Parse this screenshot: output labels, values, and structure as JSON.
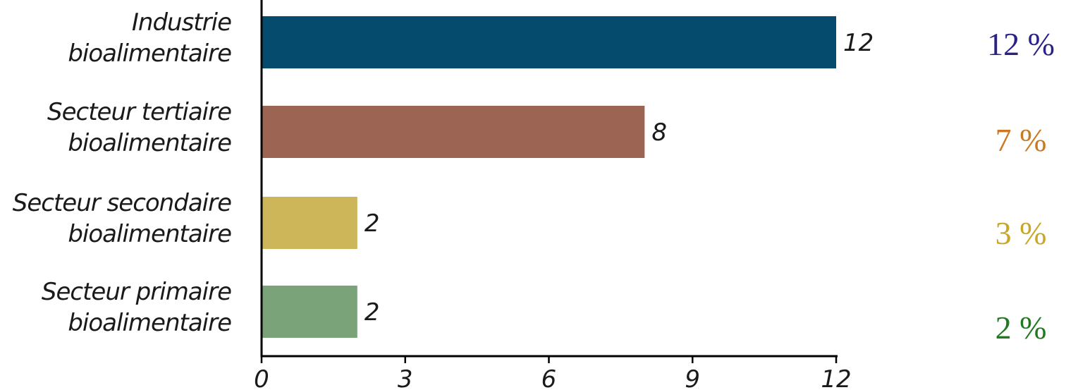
{
  "chart_data": {
    "type": "bar",
    "orientation": "horizontal",
    "categories": [
      [
        "Industrie",
        "bioalimentaire"
      ],
      [
        "Secteur tertiaire",
        "bioalimentaire"
      ],
      [
        "Secteur secondaire",
        "bioalimentaire"
      ],
      [
        "Secteur primaire",
        "bioalimentaire"
      ]
    ],
    "values": [
      12,
      8,
      2,
      2
    ],
    "value_labels": [
      "12",
      "8",
      "2",
      "2"
    ],
    "bar_colors": [
      "#044b6e",
      "#9c6453",
      "#cdb55a",
      "#7aa37a"
    ],
    "percent_labels": [
      "12 %",
      "7 %",
      "3 %",
      "2 %"
    ],
    "percent_colors": [
      "#2a2287",
      "#cc7722",
      "#c9a625",
      "#1f7a1f"
    ],
    "xticks": [
      "0",
      "3",
      "6",
      "9",
      "12"
    ],
    "xtick_values": [
      0,
      3,
      6,
      9,
      12
    ],
    "xlim": [
      0,
      12
    ],
    "grid": false,
    "title": "",
    "xlabel": "",
    "ylabel": ""
  }
}
